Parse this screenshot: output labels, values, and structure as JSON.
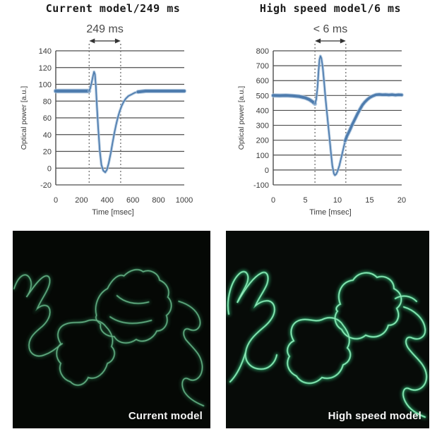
{
  "page": {
    "background": "#ffffff"
  },
  "chart_data": [
    {
      "type": "line",
      "title": "Current model/249 ms",
      "annotation": {
        "text": "249 ms",
        "x_range": [
          260,
          505
        ]
      },
      "xlabel": "Time [msec]",
      "ylabel": "Optical power [a.u.]",
      "xlim": [
        0,
        1000
      ],
      "xticks": [
        0,
        200,
        400,
        600,
        800,
        1000
      ],
      "ylim": [
        -20,
        140
      ],
      "yticks": [
        -20,
        0,
        20,
        40,
        60,
        80,
        100,
        120,
        140
      ],
      "grid": true,
      "line_color": "#4e7cae",
      "line_halo": "#a7c2dc",
      "grid_color": "#4d4d4d",
      "dotted_color": "#7a7a7a",
      "segments": [
        {
          "width": 4.5,
          "points": [
            [
              0,
              92
            ],
            [
              60,
              92
            ],
            [
              120,
              92
            ],
            [
              180,
              92
            ],
            [
              230,
              92
            ],
            [
              258,
              92
            ]
          ]
        },
        {
          "width": 1.7,
          "points": [
            [
              258,
              92
            ],
            [
              268,
              95
            ],
            [
              280,
              103
            ],
            [
              290,
              110
            ],
            [
              298,
              115
            ],
            [
              305,
              112
            ],
            [
              312,
              98
            ],
            [
              320,
              75
            ],
            [
              330,
              48
            ],
            [
              342,
              22
            ],
            [
              355,
              4
            ],
            [
              370,
              -3
            ],
            [
              385,
              -5
            ],
            [
              398,
              -2
            ],
            [
              412,
              6
            ],
            [
              428,
              18
            ],
            [
              442,
              30
            ],
            [
              456,
              42
            ],
            [
              470,
              52
            ],
            [
              484,
              61
            ],
            [
              498,
              68
            ],
            [
              512,
              74
            ],
            [
              528,
              79
            ],
            [
              545,
              83
            ],
            [
              565,
              86
            ],
            [
              590,
              88
            ],
            [
              615,
              90
            ],
            [
              640,
              91
            ]
          ]
        },
        {
          "width": 4.0,
          "points": [
            [
              640,
              91
            ],
            [
              700,
              92
            ],
            [
              760,
              92
            ],
            [
              820,
              92
            ],
            [
              880,
              92
            ],
            [
              940,
              92
            ],
            [
              1000,
              92
            ]
          ]
        }
      ]
    },
    {
      "type": "line",
      "title": "High speed model/6 ms",
      "annotation": {
        "text": "< 6 ms",
        "x_range": [
          6.5,
          11.3
        ]
      },
      "xlabel": "Time [msec]",
      "ylabel": "Optical power [a.u.]",
      "xlim": [
        0,
        20
      ],
      "xticks": [
        0,
        5,
        10,
        15,
        20
      ],
      "ylim": [
        -100,
        800
      ],
      "yticks": [
        -100,
        0,
        100,
        200,
        300,
        400,
        500,
        600,
        700,
        800
      ],
      "grid": true,
      "line_color": "#4e7cae",
      "line_halo": "#a7c2dc",
      "grid_color": "#4d4d4d",
      "dotted_color": "#7a7a7a",
      "segments": [
        {
          "width": 4.0,
          "points": [
            [
              0,
              500
            ],
            [
              1,
              499
            ],
            [
              2,
              500
            ],
            [
              3,
              498
            ],
            [
              4,
              494
            ],
            [
              5,
              484
            ],
            [
              5.6,
              473
            ],
            [
              6.1,
              459
            ],
            [
              6.5,
              444
            ]
          ]
        },
        {
          "width": 1.7,
          "points": [
            [
              6.5,
              444
            ],
            [
              6.7,
              475
            ],
            [
              6.9,
              560
            ],
            [
              7.05,
              660
            ],
            [
              7.2,
              740
            ],
            [
              7.35,
              765
            ],
            [
              7.5,
              750
            ],
            [
              7.7,
              690
            ],
            [
              7.9,
              600
            ],
            [
              8.1,
              500
            ],
            [
              8.4,
              370
            ],
            [
              8.7,
              240
            ],
            [
              9.0,
              110
            ],
            [
              9.2,
              30
            ],
            [
              9.45,
              -25
            ],
            [
              9.6,
              -35
            ],
            [
              9.8,
              -28
            ],
            [
              10.0,
              -10
            ],
            [
              10.3,
              30
            ],
            [
              10.6,
              85
            ],
            [
              10.9,
              140
            ],
            [
              11.2,
              195
            ]
          ]
        },
        {
          "width": 3.5,
          "points": [
            [
              11.2,
              195
            ],
            [
              11.5,
              230
            ],
            [
              11.9,
              265
            ],
            [
              12.3,
              305
            ],
            [
              12.7,
              340
            ],
            [
              13.1,
              375
            ],
            [
              13.5,
              408
            ],
            [
              13.9,
              437
            ],
            [
              14.3,
              458
            ],
            [
              14.7,
              475
            ],
            [
              15.1,
              488
            ],
            [
              15.5,
              497
            ],
            [
              16.0,
              505
            ],
            [
              16.5,
              507
            ],
            [
              17.0,
              505
            ],
            [
              17.5,
              506
            ],
            [
              18.0,
              504
            ],
            [
              18.5,
              506
            ],
            [
              19.0,
              503
            ],
            [
              19.5,
              505
            ],
            [
              20,
              504
            ]
          ]
        }
      ]
    }
  ],
  "micrographs": [
    {
      "label": "Current model",
      "background": "#050805",
      "glow_color": "#2f7f52",
      "mid_color": "#49a371",
      "core_color": "#8fd4ab",
      "glow_opacity": 0.45,
      "mid_opacity": 0.6,
      "core_opacity": 0.65,
      "paths": [
        "M2,82 C8,64 18,58 24,66 C30,74 26,86 20,94 C30,80 40,66 48,64 C54,63 56,70 52,80 C48,90 40,100 36,110 C44,104 52,104 54,112 C56,122 48,132 40,138 C30,146 22,154 24,166 C26,176 36,180 46,176 C58,172 66,164 72,160",
        "M70,160 C62,148 66,136 78,132 C88,128 98,132 108,128 C118,124 130,128 136,136 C144,144 148,154 144,164 C152,172 148,184 138,188 C134,202 122,212 110,208 C104,220 92,222 84,214 C72,210 66,198 70,188 C62,180 62,168 70,160 Z",
        "M122,120 C118,104 126,88 138,82 C144,70 154,60 162,64 C170,56 182,52 190,58 C200,54 212,60 214,70 C224,74 230,84 226,94 C234,102 232,114 224,120 C228,132 220,142 210,142 C204,154 190,160 180,154 C168,162 154,160 148,150 C136,150 126,142 128,132 C122,128 120,124 122,120 Z",
        "M152,92 C162,101 178,106 198,101",
        "M142,122 C157,132 177,134 202,127",
        "M242,100 C256,104 268,112 272,124 C276,136 268,144 258,140 C250,136 246,144 252,154 C262,166 274,174 276,190 C278,206 266,216 256,210 C248,206 244,216 250,228 C256,238 268,244 278,248"
      ]
    },
    {
      "label": "High speed model",
      "background": "#070b08",
      "glow_color": "#2c9a63",
      "mid_color": "#4fc287",
      "core_color": "#a8f0c8",
      "glow_opacity": 0.8,
      "mid_opacity": 0.95,
      "core_opacity": 0.9,
      "paths": [
        "M4,118 C0,96 8,70 20,60 C28,54 34,62 30,74 C26,84 20,92 16,102 C26,84 38,66 50,60 C58,56 62,64 58,76 C54,86 46,96 42,106 C52,98 64,96 68,106 C72,118 62,130 52,138 C40,148 30,158 28,172 C26,186 36,196 50,196 C62,196 70,186 72,176",
        "M28,172 C22,192 14,206 6,214",
        "M96,156 C88,142 94,128 108,126 C118,124 126,130 136,126 C148,120 160,124 166,134 C174,144 178,156 172,166 C180,174 176,186 166,190 C162,204 150,212 136,208 C124,220 108,218 100,206 C88,200 84,188 90,178 C84,170 88,160 96,156 Z",
        "M162,104 C156,88 164,72 180,70 C188,58 204,56 214,66 C226,62 238,70 238,82 C250,88 252,102 242,110 C248,122 242,134 230,134 C226,148 212,154 198,148 C186,158 170,152 164,140 C154,134 152,122 158,114 C154,110 158,106 162,104 Z",
        "M240,96 C250,90 262,92 270,100",
        "M252,108 C266,112 280,124 282,138 C284,150 274,156 264,152 C256,148 252,156 258,166 C268,180 282,188 284,204 C286,220 272,230 260,224 C252,220 248,230 254,242 C260,254 272,260 282,264"
      ]
    }
  ]
}
